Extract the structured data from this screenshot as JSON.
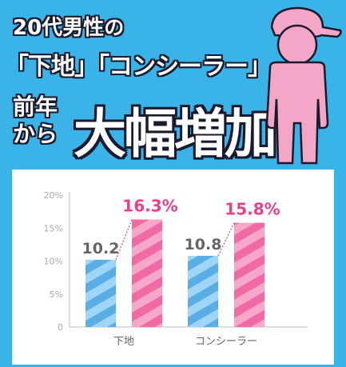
{
  "headline": {
    "line1_prefix": "20代男性",
    "line1_suffix": "の",
    "line2": "「下地」「コンシーラー」",
    "line3_small_top": "前年",
    "line3_small_bottom": "から",
    "line3_big": "大幅増加"
  },
  "colors": {
    "background": "#3ab4e8",
    "bar_prev": "#5aaee6",
    "bar_prev_stripe": "#9fd6f5",
    "bar_curr": "#f06aa4",
    "bar_curr_stripe": "#f7a8c9",
    "label_curr": "#e8408a",
    "label_prev": "#666666",
    "person": "#f4a6c7"
  },
  "icons": {
    "figure": "person-with-cap-icon"
  },
  "chart_data": {
    "type": "bar",
    "categories": [
      "下地",
      "コンシーラー"
    ],
    "series": [
      {
        "values": [
          10.2,
          10.8
        ]
      },
      {
        "values": [
          16.3,
          15.8
        ]
      }
    ],
    "data_labels": {
      "prev": [
        "10.2",
        "10.8"
      ],
      "curr": [
        "16.3%",
        "15.8%"
      ]
    },
    "yticks": [
      "0",
      "5%",
      "10%",
      "15%",
      "20%"
    ],
    "ytick_values": [
      0,
      5,
      10,
      15,
      20
    ],
    "ylim": [
      0,
      20
    ],
    "grid": false,
    "legend": "none"
  }
}
